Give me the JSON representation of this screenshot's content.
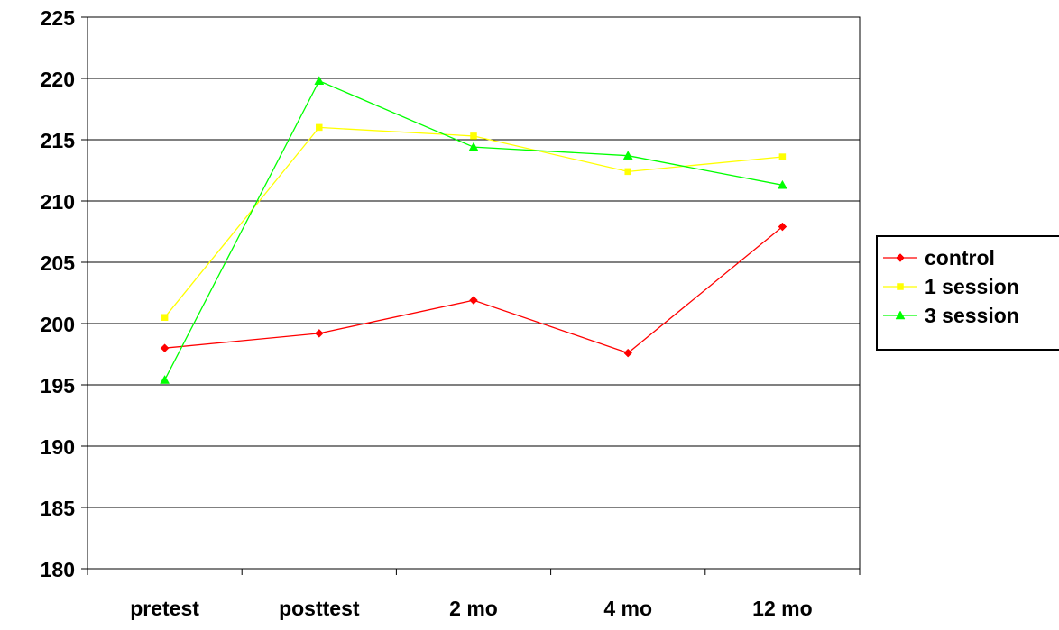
{
  "chart_data": {
    "type": "line",
    "title": "",
    "xlabel": "",
    "ylabel": "",
    "categories": [
      "pretest",
      "posttest",
      "2 mo",
      "4 mo",
      "12 mo"
    ],
    "ylim": [
      180,
      225
    ],
    "yticks": [
      180,
      185,
      190,
      195,
      200,
      205,
      210,
      215,
      220,
      225
    ],
    "grid": "horizontal",
    "legend_position": "right",
    "series": [
      {
        "name": "control",
        "color": "#ff0000",
        "marker": "diamond",
        "values": [
          198.0,
          199.2,
          201.9,
          197.6,
          207.9
        ]
      },
      {
        "name": "1 session",
        "color": "#ffff00",
        "marker": "square",
        "values": [
          200.5,
          216.0,
          215.3,
          212.4,
          213.6
        ]
      },
      {
        "name": "3 session",
        "color": "#00ff00",
        "marker": "triangle",
        "values": [
          195.4,
          219.8,
          214.4,
          213.7,
          211.3
        ]
      }
    ]
  }
}
